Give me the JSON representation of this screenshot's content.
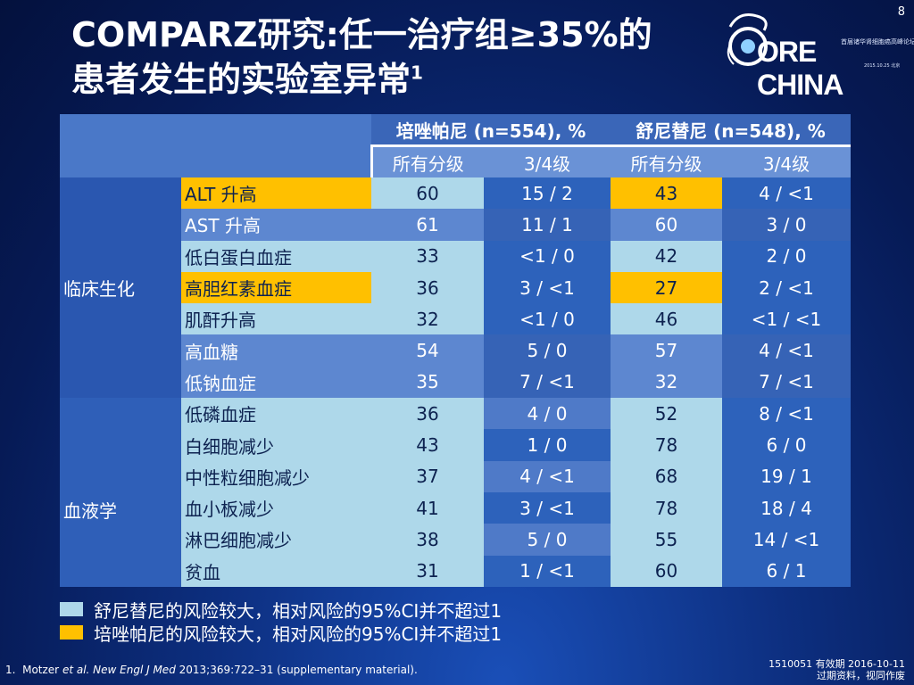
{
  "page_number": "8",
  "title": {
    "line1": "COMPARZ研究:任一治疗组≥35%的",
    "line2": "患者发生的实验室异常",
    "sup": "1"
  },
  "logo": {
    "text": "ORE CHINA",
    "tagline": "首届诸华肾细胞癌高峰论坛",
    "date": "2015.10.25 北京"
  },
  "table": {
    "group_headers": [
      "培唑帕尼 (n=554), %",
      "舒尼替尼 (n=548), %"
    ],
    "sub_headers": [
      "所有分级",
      "3/4级",
      "所有分级",
      "3/4级"
    ],
    "categories": [
      "临床生化",
      "血液学"
    ],
    "rows": [
      {
        "label": "ALT 升高",
        "p_all": "60",
        "p_g34": "15 / 2",
        "s_all": "43",
        "s_g34": "4 / <1"
      },
      {
        "label": "AST 升高",
        "p_all": "61",
        "p_g34": "11 / 1",
        "s_all": "60",
        "s_g34": "3 / 0"
      },
      {
        "label": "低白蛋白血症",
        "p_all": "33",
        "p_g34": "<1 / 0",
        "s_all": "42",
        "s_g34": "2 / 0"
      },
      {
        "label": "高胆红素血症",
        "p_all": "36",
        "p_g34": "3 / <1",
        "s_all": "27",
        "s_g34": "2 / <1"
      },
      {
        "label": "肌酐升高",
        "p_all": "32",
        "p_g34": "<1 / 0",
        "s_all": "46",
        "s_g34": "<1 / <1"
      },
      {
        "label": "高血糖",
        "p_all": "54",
        "p_g34": "5 / 0",
        "s_all": "57",
        "s_g34": "4 / <1"
      },
      {
        "label": "低钠血症",
        "p_all": "35",
        "p_g34": "7 / <1",
        "s_all": "32",
        "s_g34": "7 / <1"
      },
      {
        "label": "低磷血症",
        "p_all": "36",
        "p_g34": "4 / 0",
        "s_all": "52",
        "s_g34": "8 / <1"
      },
      {
        "label": "白细胞减少",
        "p_all": "43",
        "p_g34": "1 / 0",
        "s_all": "78",
        "s_g34": "6 / 0"
      },
      {
        "label": "中性粒细胞减少",
        "p_all": "37",
        "p_g34": "4 / <1",
        "s_all": "68",
        "s_g34": "19 / 1"
      },
      {
        "label": "血小板减少",
        "p_all": "41",
        "p_g34": "3 / <1",
        "s_all": "78",
        "s_g34": "18 / 4"
      },
      {
        "label": "淋巴细胞减少",
        "p_all": "38",
        "p_g34": "5 / 0",
        "s_all": "55",
        "s_g34": "14 / <1"
      },
      {
        "label": "贫血",
        "p_all": "31",
        "p_g34": "1 / <1",
        "s_all": "60",
        "s_g34": "6 / 1"
      }
    ]
  },
  "legend": [
    {
      "color": "#aed8ea",
      "text": "舒尼替尼的风险较大，相对风险的95%CI并不超过1"
    },
    {
      "color": "#ffc000",
      "text": "培唑帕尼的风险较大，相对风险的95%CI并不超过1"
    }
  ],
  "footnote": {
    "num": "1.",
    "authors": "Motzer ",
    "etal": "et al.",
    "journal": " New Engl J Med",
    "rest": " 2013;369:722–31 (supplementary material)."
  },
  "stamp": {
    "line1": "1510051  有效期 2016-10-11",
    "line2": "过期资料，视同作废"
  },
  "colors": {
    "background": "#0d2f80",
    "gold_highlight": "#ffc000",
    "light_blue_highlight": "#aed8ea"
  }
}
